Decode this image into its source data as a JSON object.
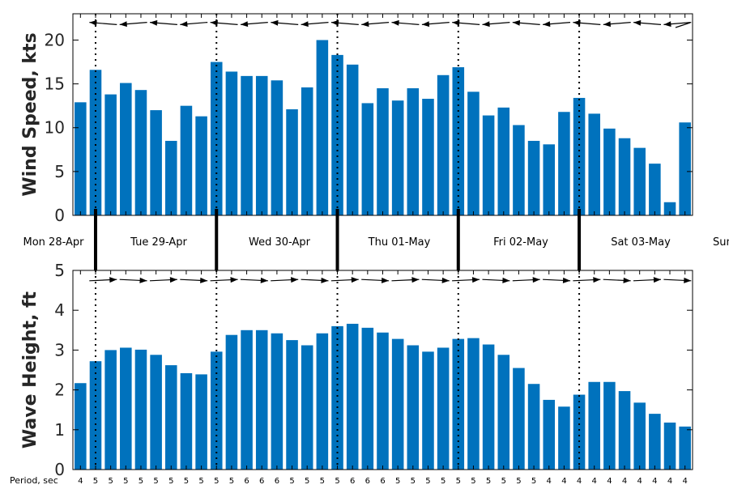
{
  "chart_data": [
    {
      "type": "bar",
      "ylabel": "Wind Speed, kts",
      "ylim": [
        0,
        23
      ],
      "yticks": [
        0,
        5,
        10,
        15,
        20
      ],
      "grid": false,
      "color": "#0072BD",
      "values": [
        12.9,
        16.6,
        13.8,
        15.1,
        14.3,
        12.0,
        8.5,
        12.5,
        11.3,
        17.5,
        16.4,
        15.9,
        15.9,
        15.4,
        12.1,
        14.6,
        20.0,
        18.3,
        17.2,
        12.8,
        14.5,
        13.1,
        14.5,
        13.3,
        16.0,
        16.9,
        14.1,
        11.4,
        12.3,
        10.3,
        8.5,
        8.1,
        11.8,
        13.4,
        11.6,
        9.9,
        8.8,
        7.7,
        5.9,
        1.5,
        10.6
      ],
      "direction_arrows": "pointing-left"
    },
    {
      "type": "bar",
      "ylabel": "Wave Height, ft",
      "ylim": [
        0,
        5
      ],
      "yticks": [
        0,
        1,
        2,
        3,
        4,
        5
      ],
      "grid": false,
      "color": "#0072BD",
      "values": [
        2.17,
        2.72,
        3.0,
        3.06,
        3.01,
        2.88,
        2.62,
        2.42,
        2.39,
        2.96,
        3.38,
        3.5,
        3.5,
        3.42,
        3.25,
        3.12,
        3.42,
        3.6,
        3.66,
        3.56,
        3.44,
        3.28,
        3.12,
        2.96,
        3.06,
        3.28,
        3.3,
        3.14,
        2.88,
        2.55,
        2.15,
        1.75,
        1.58,
        1.88,
        2.2,
        2.2,
        1.97,
        1.68,
        1.4,
        1.18,
        1.08
      ],
      "period_label": "Period, sec",
      "periods": [
        "4",
        "5",
        "5",
        "5",
        "5",
        "5",
        "5",
        "5",
        "5",
        "5",
        "5",
        "6",
        "6",
        "6",
        "5",
        "5",
        "5",
        "5",
        "6",
        "6",
        "6",
        "5",
        "5",
        "5",
        "5",
        "5",
        "5",
        "5",
        "5",
        "5",
        "5",
        "4",
        "4",
        "4",
        "4",
        "4",
        "4",
        "4",
        "4",
        "4",
        "4"
      ],
      "direction_arrows": "pointing-right"
    }
  ],
  "day_labels": [
    "Mon 28-Apr",
    "Tue 29-Apr",
    "Wed 30-Apr",
    "Thu 01-May",
    "Fri 02-May",
    "Sat 03-May",
    "Sun"
  ]
}
